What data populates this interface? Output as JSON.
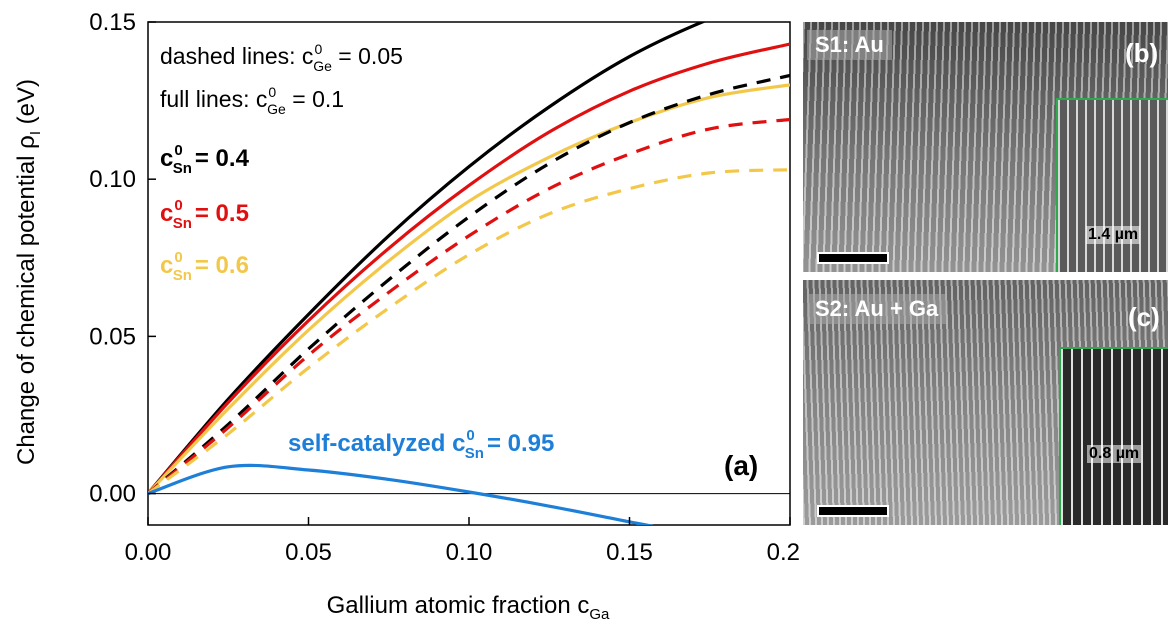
{
  "chart_data": {
    "type": "line",
    "ylabel_main": "Change of chemical potential ρ",
    "ylabel_sub": "I",
    "ylabel_unit": " (eV)",
    "xlabel_main": "Gallium atomic fraction c",
    "xlabel_sub": "Ga",
    "xlim": [
      0,
      0.2
    ],
    "ylim": [
      -0.01,
      0.15
    ],
    "xticks": [
      "0.00",
      "0.05",
      "0.10",
      "0.15",
      "0.20"
    ],
    "yticks": [
      "0.00",
      "0.05",
      "0.10",
      "0.15"
    ],
    "x": [
      0,
      0.025,
      0.05,
      0.075,
      0.1,
      0.125,
      0.15,
      0.175,
      0.2
    ],
    "series": [
      {
        "cSn": "0.4",
        "cGe": "0.1",
        "style": "solid",
        "color": "#000000",
        "values": [
          0,
          0.03,
          0.057,
          0.082,
          0.104,
          0.123,
          0.139,
          0.151,
          0.16
        ]
      },
      {
        "cSn": "0.5",
        "cGe": "0.1",
        "style": "solid",
        "color": "#e01010",
        "values": [
          0,
          0.029,
          0.055,
          0.078,
          0.098,
          0.115,
          0.128,
          0.137,
          0.143
        ]
      },
      {
        "cSn": "0.6",
        "cGe": "0.1",
        "style": "solid",
        "color": "#f3c84a",
        "values": [
          0,
          0.027,
          0.052,
          0.074,
          0.093,
          0.107,
          0.118,
          0.126,
          0.13
        ]
      },
      {
        "cSn": "0.4",
        "cGe": "0.05",
        "style": "dashed",
        "color": "#000000",
        "values": [
          0,
          0.022,
          0.046,
          0.068,
          0.088,
          0.105,
          0.118,
          0.127,
          0.133
        ]
      },
      {
        "cSn": "0.5",
        "cGe": "0.05",
        "style": "dashed",
        "color": "#e01010",
        "values": [
          0,
          0.021,
          0.044,
          0.064,
          0.082,
          0.097,
          0.108,
          0.116,
          0.119
        ]
      },
      {
        "cSn": "0.6",
        "cGe": "0.05",
        "style": "dashed",
        "color": "#f3c84a",
        "values": [
          0,
          0.019,
          0.04,
          0.059,
          0.076,
          0.089,
          0.097,
          0.102,
          0.103
        ]
      },
      {
        "cSn": "0.95",
        "cGe": "",
        "style": "solid",
        "color": "#1e7fd8",
        "values": [
          0,
          0.0085,
          0.0075,
          0.0045,
          0.0005,
          -0.004,
          -0.009,
          -0.014,
          -0.02
        ]
      }
    ],
    "annotations": {
      "dashed_prefix": "dashed lines: c",
      "dashed_value": " = 0.05",
      "full_prefix": "full lines: c",
      "full_value": " = 0.1",
      "sup": "0",
      "sub_ge": "Ge",
      "sub_sn": "Sn",
      "c": "c",
      "sn_04": "= 0.4",
      "sn_05": "= 0.5",
      "sn_06": "= 0.6",
      "self_prefix": "self-catalyzed c",
      "self_value": "= 0.95",
      "panel_a": "(a)"
    }
  },
  "panels": {
    "b": {
      "label": "S1: Au",
      "letter": "(b)",
      "inset_length": "1.4 µm"
    },
    "c": {
      "label": "S2: Au + Ga",
      "letter": "(c)",
      "inset_length": "0.8 µm"
    }
  },
  "colors": {
    "black": "#000000",
    "red": "#e01010",
    "yellow": "#f3c84a",
    "blue": "#1e7fd8",
    "inset_border": "#2fa84f"
  }
}
